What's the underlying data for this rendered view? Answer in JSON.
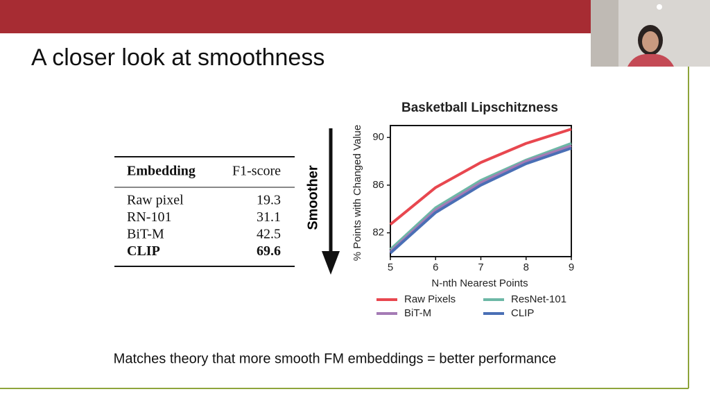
{
  "slide": {
    "title": "A closer look at smoothness",
    "table": {
      "header": [
        "Embedding",
        "F1-score"
      ],
      "rows": [
        [
          "Raw pixel",
          "19.3"
        ],
        [
          "RN-101",
          "31.1"
        ],
        [
          "BiT-M",
          "42.5"
        ],
        [
          "CLIP",
          "69.6"
        ]
      ]
    },
    "arrow_label": "Smoother",
    "caption": "Matches theory that more smooth FM embeddings = better performance"
  },
  "chart_data": {
    "type": "line",
    "title": "Basketball Lipschitzness",
    "x_label": "N-nth Nearest Points",
    "y_label": "% Points with Changed Value",
    "x": [
      5,
      6,
      7,
      8,
      9
    ],
    "series": [
      {
        "name": "Raw Pixels",
        "color": "#e8474f",
        "values": [
          82.7,
          85.8,
          87.9,
          89.5,
          90.7
        ]
      },
      {
        "name": "ResNet-101",
        "color": "#6db8a6",
        "values": [
          80.6,
          84.1,
          86.4,
          88.1,
          89.5
        ]
      },
      {
        "name": "BiT-M",
        "color": "#a47bb5",
        "values": [
          80.4,
          83.9,
          86.2,
          88.0,
          89.3
        ]
      },
      {
        "name": "CLIP",
        "color": "#4a6fb5",
        "values": [
          80.3,
          83.7,
          86.0,
          87.8,
          89.1
        ]
      }
    ],
    "xlim": [
      5,
      9
    ],
    "xticks": [
      5,
      6,
      7,
      8,
      9
    ],
    "ylim": [
      80,
      91
    ],
    "yticks": [
      82,
      86,
      90
    ],
    "grid": false,
    "legend": "bottom"
  }
}
